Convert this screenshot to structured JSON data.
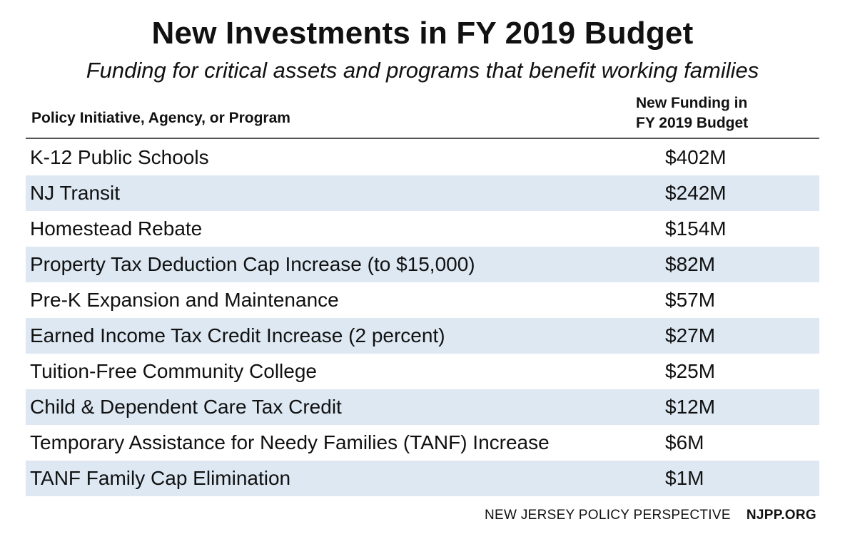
{
  "title": "New Investments in FY 2019 Budget",
  "subtitle": "Funding for critical assets and programs that benefit working families",
  "columns": {
    "left": "Policy Initiative, Agency, or Program",
    "right_line1": "New Funding in",
    "right_line2": "FY 2019 Budget"
  },
  "rows": [
    {
      "label": "K-12 Public Schools",
      "value": "$402M"
    },
    {
      "label": "NJ Transit",
      "value": "$242M"
    },
    {
      "label": "Homestead Rebate",
      "value": "$154M"
    },
    {
      "label": "Property Tax Deduction Cap Increase (to $15,000)",
      "value": "$82M"
    },
    {
      "label": "Pre-K Expansion and Maintenance",
      "value": "$57M"
    },
    {
      "label": "Earned Income Tax Credit Increase (2 percent)",
      "value": "$27M"
    },
    {
      "label": "Tuition-Free Community College",
      "value": "$25M"
    },
    {
      "label": "Child & Dependent Care Tax Credit",
      "value": "$12M"
    },
    {
      "label": "Temporary Assistance for Needy Families (TANF) Increase",
      "value": "$6M"
    },
    {
      "label": "TANF Family Cap Elimination",
      "value": "$1M"
    }
  ],
  "footer": {
    "org": "NEW JERSEY POLICY PERSPECTIVE",
    "site": "NJPP.ORG"
  },
  "colors": {
    "shaded_row": "#dde8f2",
    "text": "#111111",
    "rule": "#555555"
  }
}
